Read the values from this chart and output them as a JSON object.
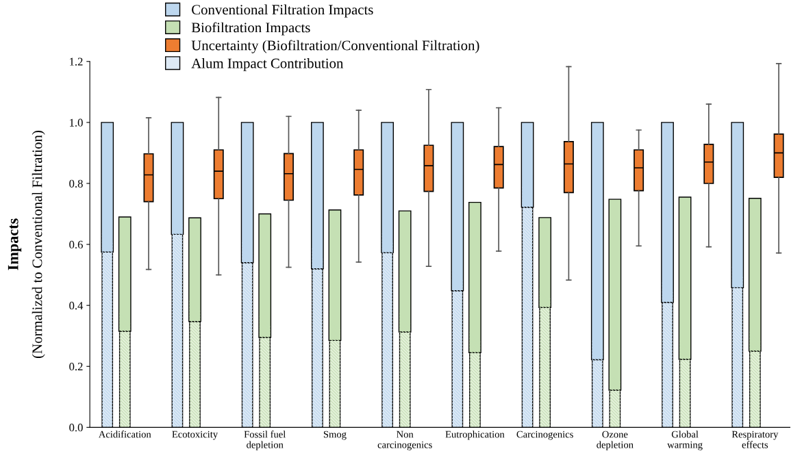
{
  "chart_data": {
    "type": "bar",
    "categories": [
      "Acidification",
      "Ecotoxicity",
      "Fossil fuel\ndepletion",
      "Smog",
      "Non\ncarcinogenics",
      "Eutrophication",
      "Carcinogenics",
      "Ozone\ndepletion",
      "Global\nwarming",
      "Respiratory\neffects"
    ],
    "ylabel": "Impacts\n(Normalized to Conventional Filtration)",
    "ylim": [
      0,
      1.2
    ],
    "yticks": [
      {
        "value": 0,
        "label": "0.0"
      },
      {
        "value": 0.2,
        "label": "0.2"
      },
      {
        "value": 0.4,
        "label": "0.4"
      },
      {
        "value": 0.6,
        "label": "0.6"
      },
      {
        "value": 0.8,
        "label": "0.8"
      },
      {
        "value": 1.0,
        "label": "1.0"
      },
      {
        "value": 1.2,
        "label": "1.2"
      }
    ],
    "grid": false,
    "legend": "top left",
    "series": [
      {
        "name": "Alum Impact Contribution",
        "color": "#dde9f5",
        "values": [
          0.575,
          0.633,
          0.54,
          0.52,
          0.573,
          0.448,
          0.722,
          0.222,
          0.41,
          0.458
        ]
      },
      {
        "name": "Conventional Filtration Impacts",
        "color": "#bdd7ee",
        "base": [
          0.575,
          0.633,
          0.54,
          0.52,
          0.573,
          0.448,
          0.722,
          0.222,
          0.41,
          0.458
        ],
        "values": [
          0.425,
          0.367,
          0.46,
          0.48,
          0.427,
          0.552,
          0.278,
          0.778,
          0.59,
          0.542
        ]
      },
      {
        "color": "#e4f0db",
        "values": [
          0.315,
          0.347,
          0.295,
          0.285,
          0.313,
          0.245,
          0.393,
          0.122,
          0.223,
          0.25
        ]
      },
      {
        "name": "Biofiltration Impacts",
        "color": "#c5e0b4",
        "base": [
          0.315,
          0.347,
          0.295,
          0.285,
          0.313,
          0.245,
          0.393,
          0.122,
          0.223,
          0.25
        ],
        "values": [
          0.375,
          0.34,
          0.405,
          0.428,
          0.397,
          0.493,
          0.295,
          0.626,
          0.532,
          0.501
        ]
      },
      {
        "name": "Uncertainty (Biofiltration/Conventional Filtration)",
        "type": "box",
        "color": "#ed7d31",
        "boxes": [
          {
            "low": 0.518,
            "q1": 0.74,
            "median": 0.828,
            "q3": 0.897,
            "high": 1.015
          },
          {
            "low": 0.5,
            "q1": 0.75,
            "median": 0.84,
            "q3": 0.91,
            "high": 1.082
          },
          {
            "low": 0.525,
            "q1": 0.745,
            "median": 0.832,
            "q3": 0.898,
            "high": 1.02
          },
          {
            "low": 0.542,
            "q1": 0.762,
            "median": 0.846,
            "q3": 0.91,
            "high": 1.04
          },
          {
            "low": 0.528,
            "q1": 0.774,
            "median": 0.858,
            "q3": 0.925,
            "high": 1.108
          },
          {
            "low": 0.578,
            "q1": 0.785,
            "median": 0.862,
            "q3": 0.921,
            "high": 1.048
          },
          {
            "low": 0.483,
            "q1": 0.77,
            "median": 0.864,
            "q3": 0.937,
            "high": 1.183
          },
          {
            "low": 0.595,
            "q1": 0.776,
            "median": 0.851,
            "q3": 0.91,
            "high": 0.975
          },
          {
            "low": 0.592,
            "q1": 0.8,
            "median": 0.87,
            "q3": 0.928,
            "high": 1.06
          },
          {
            "low": 0.572,
            "q1": 0.82,
            "median": 0.9,
            "q3": 0.962,
            "high": 1.193
          }
        ]
      }
    ]
  }
}
